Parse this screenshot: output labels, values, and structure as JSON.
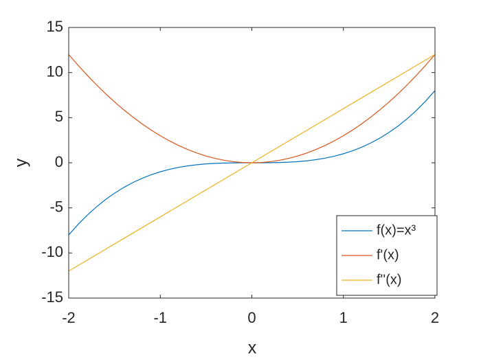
{
  "chart_data": {
    "type": "line",
    "xlabel": "x",
    "ylabel": "y",
    "x": [
      -2,
      -1.9,
      -1.8,
      -1.7,
      -1.6,
      -1.5,
      -1.4,
      -1.3,
      -1.2,
      -1.1,
      -1,
      -0.9,
      -0.8,
      -0.7,
      -0.6,
      -0.5,
      -0.4,
      -0.3,
      -0.2,
      -0.1,
      0,
      0.1,
      0.2,
      0.3,
      0.4,
      0.5,
      0.6,
      0.7,
      0.8,
      0.9,
      1,
      1.1,
      1.2,
      1.3,
      1.4,
      1.5,
      1.6,
      1.7,
      1.8,
      1.9,
      2
    ],
    "series": [
      {
        "name": "f(x)=x³",
        "color": "#0072BD",
        "values": [
          -8,
          -6.859,
          -5.832,
          -4.913,
          -4.096,
          -3.375,
          -2.744,
          -2.197,
          -1.728,
          -1.331,
          -1,
          -0.729,
          -0.512,
          -0.343,
          -0.216,
          -0.125,
          -0.064,
          -0.027,
          -0.008,
          -0.001,
          0,
          0.001,
          0.008,
          0.027,
          0.064,
          0.125,
          0.216,
          0.343,
          0.512,
          0.729,
          1,
          1.331,
          1.728,
          2.197,
          2.744,
          3.375,
          4.096,
          4.913,
          5.832,
          6.859,
          8
        ]
      },
      {
        "name": "f'(x)",
        "color": "#D95319",
        "values": [
          12,
          10.83,
          9.72,
          8.67,
          7.68,
          6.75,
          5.88,
          5.07,
          4.32,
          3.63,
          3,
          2.43,
          1.92,
          1.47,
          1.08,
          0.75,
          0.48,
          0.27,
          0.12,
          0.03,
          0,
          0.03,
          0.12,
          0.27,
          0.48,
          0.75,
          1.08,
          1.47,
          1.92,
          2.43,
          3,
          3.63,
          4.32,
          5.07,
          5.88,
          6.75,
          7.68,
          8.67,
          9.72,
          10.83,
          12
        ]
      },
      {
        "name": "f''(x)",
        "color": "#EDB120",
        "values": [
          -12,
          -11.4,
          -10.8,
          -10.2,
          -9.6,
          -9,
          -8.4,
          -7.8,
          -7.2,
          -6.6,
          -6,
          -5.4,
          -4.8,
          -4.2,
          -3.6,
          -3,
          -2.4,
          -1.8,
          -1.2,
          -0.6,
          0,
          0.6,
          1.2,
          1.8,
          2.4,
          3,
          3.6,
          4.2,
          4.8,
          5.4,
          6,
          6.6,
          7.2,
          7.8,
          8.4,
          9,
          9.6,
          10.2,
          10.8,
          11.4,
          12
        ]
      }
    ],
    "xlim": [
      -2,
      2
    ],
    "xticks": [
      -2,
      -1,
      0,
      1,
      2
    ],
    "ylim": [
      -15,
      15
    ],
    "yticks": [
      -15,
      -10,
      -5,
      0,
      5,
      10,
      15
    ],
    "legend": "southeast",
    "box": true
  }
}
